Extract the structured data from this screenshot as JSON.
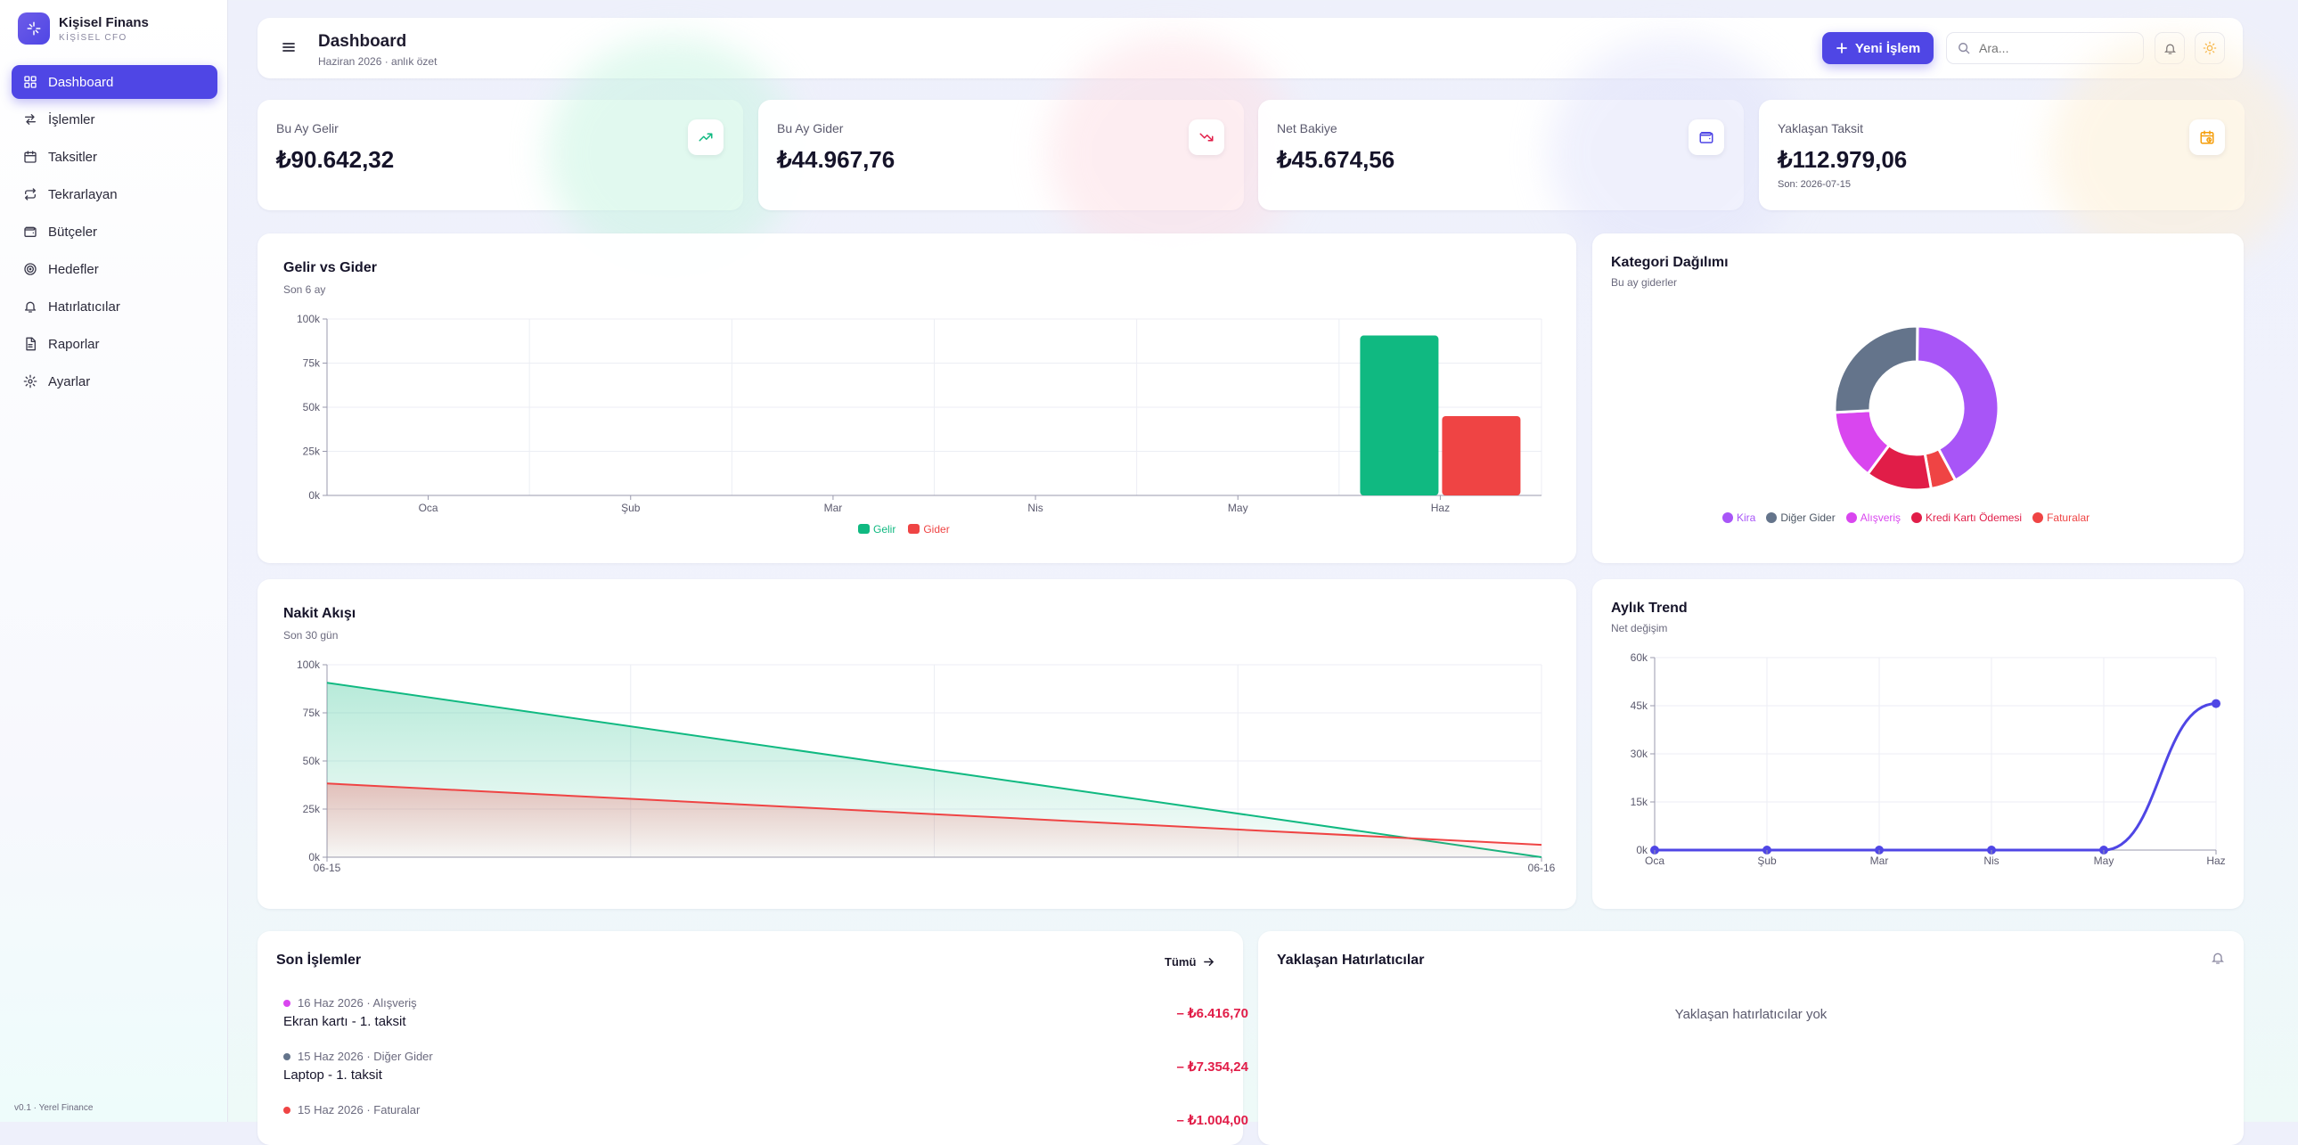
{
  "brand": {
    "name": "Kişisel Finans",
    "sub": "KİŞİSEL CFO"
  },
  "nav": [
    {
      "label": "Dashboard",
      "icon": "grid-icon",
      "active": true
    },
    {
      "label": "İşlemler",
      "icon": "arrows-icon"
    },
    {
      "label": "Taksitler",
      "icon": "calendar-icon"
    },
    {
      "label": "Tekrarlayan",
      "icon": "repeat-icon"
    },
    {
      "label": "Bütçeler",
      "icon": "wallet-icon"
    },
    {
      "label": "Hedefler",
      "icon": "target-icon"
    },
    {
      "label": "Hatırlatıcılar",
      "icon": "bell-icon"
    },
    {
      "label": "Raporlar",
      "icon": "file-icon"
    },
    {
      "label": "Ayarlar",
      "icon": "gear-icon"
    }
  ],
  "version": "v0.1 · Yerel Finance",
  "header": {
    "title": "Dashboard",
    "subtitle": "Haziran 2026 · anlık özet",
    "new_button": "Yeni İşlem",
    "search_placeholder": "Ara..."
  },
  "kpis": [
    {
      "label": "Bu Ay Gelir",
      "value": "₺90.642,32",
      "icon": "trend-up-icon",
      "color": "#10b981"
    },
    {
      "label": "Bu Ay Gider",
      "value": "₺44.967,76",
      "icon": "trend-down-icon",
      "color": "#e11d48"
    },
    {
      "label": "Net Bakiye",
      "value": "₺45.674,56",
      "icon": "wallet-icon",
      "color": "#4f46e5"
    },
    {
      "label": "Yaklaşan Taksit",
      "value": "₺112.979,06",
      "foot": "Son: 2026-07-15",
      "icon": "calendar-clock-icon",
      "color": "#f59e0b"
    }
  ],
  "income_expense": {
    "title": "Gelir vs Gider",
    "subtitle": "Son 6 ay",
    "legend": {
      "income": "Gelir",
      "expense": "Gider"
    }
  },
  "category": {
    "title": "Kategori Dağılımı",
    "subtitle": "Bu ay giderler"
  },
  "cashflow": {
    "title": "Nakit Akışı",
    "subtitle": "Son 30 gün"
  },
  "trend": {
    "title": "Aylık Trend",
    "subtitle": "Net değişim"
  },
  "recent": {
    "title": "Son İşlemler",
    "all_link": "Tümü",
    "items": [
      {
        "meta": "16 Haz 2026 · Alışveriş",
        "title": "Ekran kartı - 1. taksit",
        "amount": "– ₺6.416,70",
        "color": "#d946ef"
      },
      {
        "meta": "15 Haz 2026 · Diğer Gider",
        "title": "Laptop - 1. taksit",
        "amount": "– ₺7.354,24",
        "color": "#64748b"
      },
      {
        "meta": "15 Haz 2026 · Faturalar",
        "title": "",
        "amount": "– ₺1.004,00",
        "color": "#ef4444"
      }
    ]
  },
  "reminders": {
    "title": "Yaklaşan Hatırlatıcılar",
    "empty": "Yaklaşan hatırlatıcılar yok"
  },
  "chart_data": [
    {
      "type": "bar",
      "title": "Gelir vs Gider",
      "subtitle": "Son 6 ay",
      "categories": [
        "Oca",
        "Şub",
        "Mar",
        "Nis",
        "May",
        "Haz"
      ],
      "series": [
        {
          "name": "Gelir",
          "color": "#10b981",
          "values": [
            0,
            0,
            0,
            0,
            0,
            90642
          ]
        },
        {
          "name": "Gider",
          "color": "#ef4444",
          "values": [
            0,
            0,
            0,
            0,
            0,
            44968
          ]
        }
      ],
      "ylim": [
        0,
        100000
      ],
      "yticks": [
        "0k",
        "25k",
        "50k",
        "75k",
        "100k"
      ],
      "grid": true,
      "legend": "bottom"
    },
    {
      "type": "pie",
      "donut": true,
      "title": "Kategori Dağılımı",
      "subtitle": "Bu ay giderler",
      "slices": [
        {
          "name": "Kira",
          "color": "#a855f7",
          "value": 42
        },
        {
          "name": "Faturalar",
          "color": "#ef4444",
          "value": 5
        },
        {
          "name": "Kredi Kartı Ödemesi",
          "color": "#e11d48",
          "value": 13
        },
        {
          "name": "Alışveriş",
          "color": "#d946ef",
          "value": 14
        },
        {
          "name": "Diğer Gider",
          "color": "#64748b",
          "value": 26
        }
      ],
      "legend_order": [
        "Kira",
        "Diğer Gider",
        "Alışveriş",
        "Kredi Kartı Ödemesi",
        "Faturalar"
      ],
      "legend": "bottom"
    },
    {
      "type": "area",
      "title": "Nakit Akışı",
      "subtitle": "Son 30 gün",
      "x": [
        "06-15",
        "06-16"
      ],
      "series": [
        {
          "name": "Gelir",
          "color": "#10b981",
          "values": [
            90642,
            0
          ]
        },
        {
          "name": "Gider",
          "color": "#ef4444",
          "values": [
            38300,
            6400
          ]
        }
      ],
      "ylim": [
        0,
        100000
      ],
      "yticks": [
        "0k",
        "25k",
        "50k",
        "75k",
        "100k"
      ],
      "grid": true
    },
    {
      "type": "line",
      "title": "Aylık Trend",
      "subtitle": "Net değişim",
      "categories": [
        "Oca",
        "Şub",
        "Mar",
        "Nis",
        "May",
        "Haz"
      ],
      "series": [
        {
          "name": "Net",
          "color": "#4f46e5",
          "values": [
            0,
            0,
            0,
            0,
            0,
            45675
          ]
        }
      ],
      "ylim": [
        0,
        60000
      ],
      "yticks": [
        "0k",
        "15k",
        "30k",
        "45k",
        "60k"
      ],
      "grid": true
    }
  ]
}
